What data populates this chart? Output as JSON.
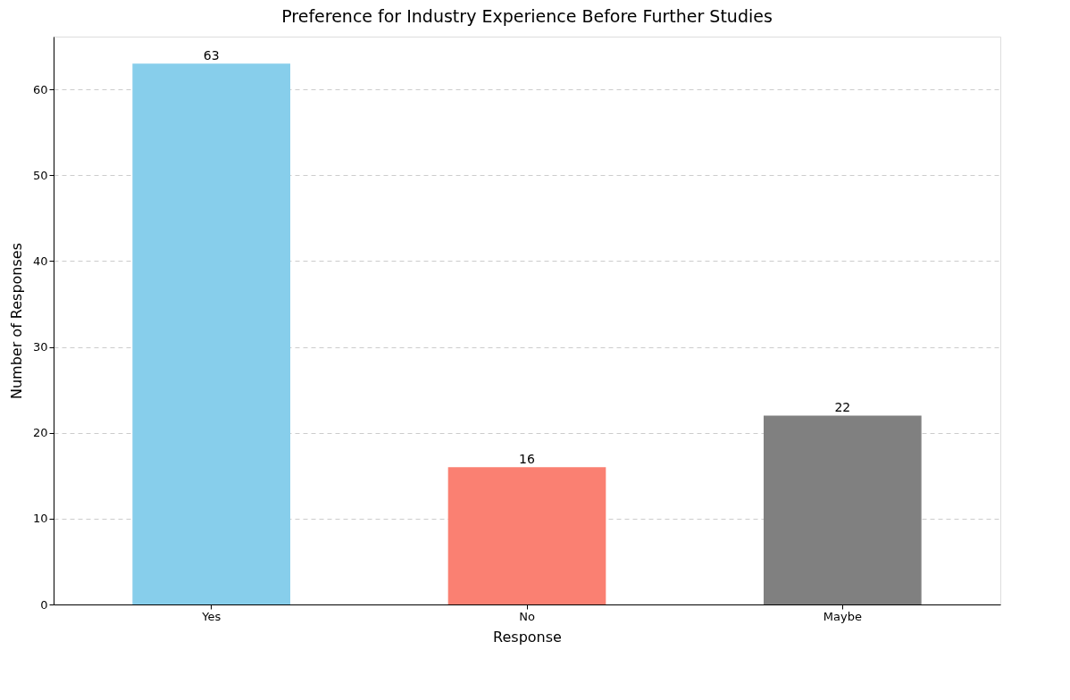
{
  "chart_data": {
    "type": "bar",
    "title": "Preference for Industry Experience Before Further Studies",
    "xlabel": "Response",
    "ylabel": "Number of Responses",
    "categories": [
      "Yes",
      "No",
      "Maybe"
    ],
    "values": [
      63,
      16,
      22
    ],
    "colors": [
      "#87ceeb",
      "#fa8072",
      "#808080"
    ],
    "ylim": [
      0,
      66.15
    ],
    "yticks": [
      0,
      10,
      20,
      30,
      40,
      50,
      60
    ],
    "grid": "y",
    "data_labels": true
  }
}
